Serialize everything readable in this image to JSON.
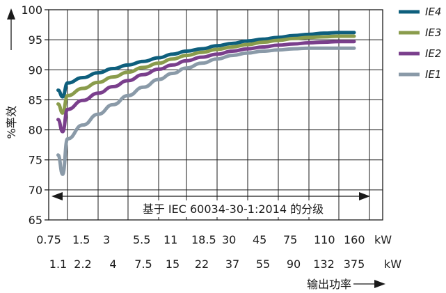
{
  "chart_data": {
    "type": "line",
    "ylim": [
      65,
      100
    ],
    "y_ticks": [
      65,
      70,
      75,
      80,
      85,
      90,
      95,
      100
    ],
    "ylabel": "效\n%率",
    "xlabel": "输出功率",
    "x_unit": "kW",
    "x_ticks_row1": [
      "0.75",
      "1.5",
      "3",
      "5.5",
      "11",
      "18.5",
      "30",
      "45",
      "75",
      "110",
      "160"
    ],
    "x_ticks_row2": [
      "1.1",
      "2.2",
      "4",
      "7.5",
      "15",
      "22",
      "37",
      "55",
      "90",
      "132",
      "375"
    ],
    "grid": true,
    "legend_position": "top-right",
    "annotation": "基于 IEC 60034-30-1:2014 的分级",
    "x": [
      "0.75",
      "1.1",
      "1.5",
      "2.2",
      "3",
      "4",
      "5.5",
      "7.5",
      "11",
      "15",
      "18.5",
      "22",
      "30",
      "37",
      "45",
      "55",
      "75",
      "90",
      "110",
      "132",
      "160",
      "375"
    ],
    "series": [
      {
        "name": "IE4",
        "color": "#0e5f7d",
        "values": [
          85.5,
          86.6,
          87.8,
          88.7,
          89.5,
          90.2,
          90.8,
          91.4,
          92.0,
          92.6,
          93.1,
          93.5,
          94.0,
          94.4,
          94.8,
          95.1,
          95.4,
          95.7,
          95.9,
          96.1,
          96.2,
          96.2
        ]
      },
      {
        "name": "IE3",
        "color": "#8a9c4c",
        "values": [
          82.8,
          84.3,
          85.7,
          86.9,
          87.9,
          88.8,
          89.6,
          90.4,
          91.1,
          91.8,
          92.4,
          92.9,
          93.4,
          93.8,
          94.2,
          94.6,
          94.9,
          95.2,
          95.4,
          95.5,
          95.6,
          95.6
        ]
      },
      {
        "name": "IE2",
        "color": "#7a3f8c",
        "values": [
          79.7,
          81.7,
          83.4,
          84.9,
          86.1,
          87.2,
          88.2,
          89.2,
          90.1,
          90.8,
          91.5,
          92.1,
          92.6,
          93.1,
          93.5,
          93.8,
          94.1,
          94.3,
          94.5,
          94.6,
          94.7,
          94.7
        ]
      },
      {
        "name": "IE1",
        "color": "#8a9aa8",
        "values": [
          72.6,
          75.8,
          78.5,
          80.8,
          82.6,
          84.2,
          85.7,
          87.1,
          88.4,
          89.4,
          90.3,
          91.1,
          91.8,
          92.4,
          92.8,
          93.1,
          93.3,
          93.5,
          93.6,
          93.6,
          93.6,
          93.6
        ]
      }
    ]
  }
}
